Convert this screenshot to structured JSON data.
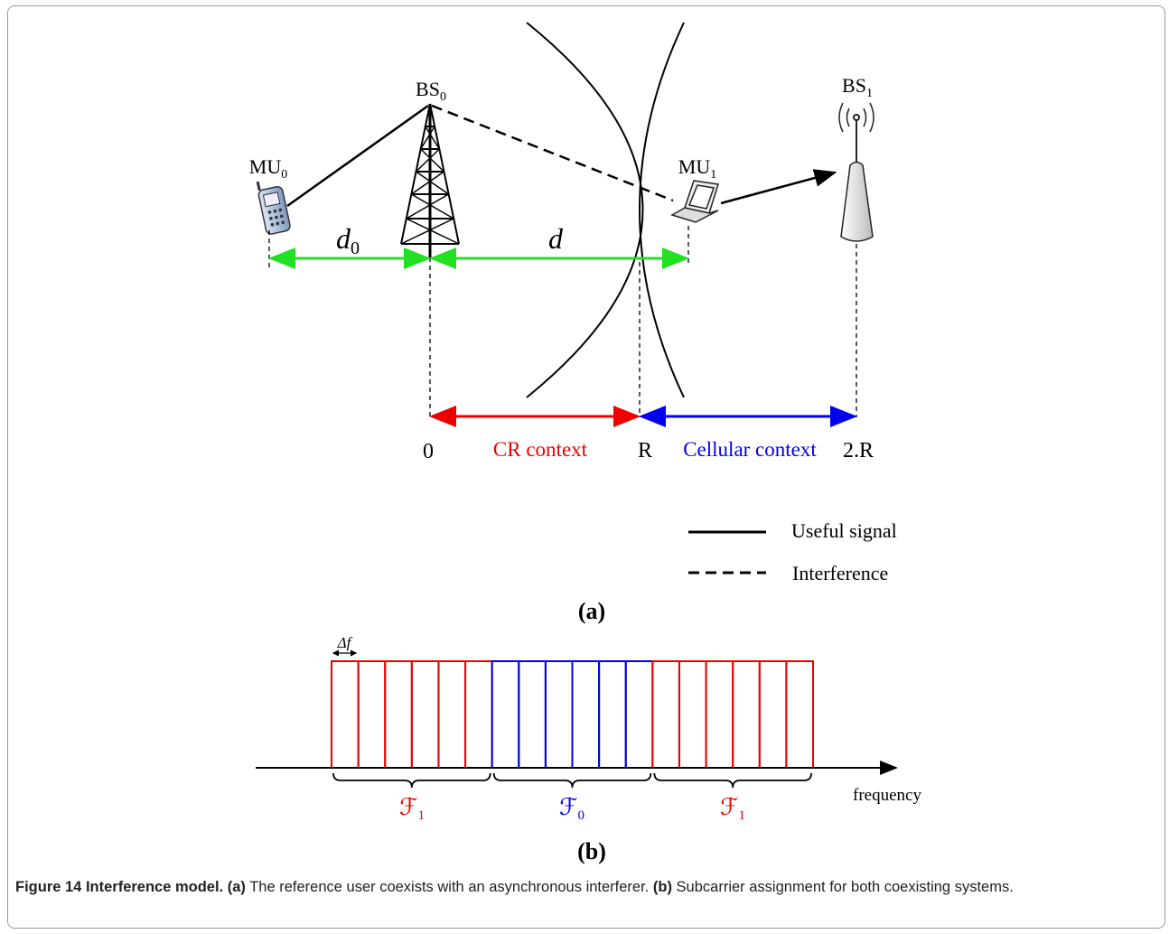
{
  "figure": {
    "panel_a": {
      "nodes": [
        {
          "label": "BS",
          "sub": "0"
        },
        {
          "label": "MU",
          "sub": "0"
        },
        {
          "label": "MU",
          "sub": "1"
        },
        {
          "label": "BS",
          "sub": "1"
        }
      ],
      "distances": [
        {
          "label": "d",
          "sub": "0"
        },
        {
          "label": "d"
        }
      ],
      "positions": [
        "0",
        "R",
        "2.R"
      ],
      "contexts": [
        "CR context",
        "Cellular context"
      ],
      "legend": [
        "Useful signal",
        "Interference"
      ],
      "panel_label": "(a)"
    },
    "panel_b": {
      "spacing": "Δf",
      "groups": [
        {
          "label": "ℱ",
          "sub": "1"
        },
        {
          "label": "ℱ",
          "sub": "0"
        },
        {
          "label": "ℱ",
          "sub": "1"
        }
      ],
      "axis": "frequency",
      "panel_label": "(b)"
    },
    "caption": {
      "title": "Figure 14 Interference model.",
      "a_label": "(a)",
      "a_text": "The reference user coexists with an asynchronous interferer.",
      "b_label": "(b)",
      "b_text": "Subcarrier assignment for both coexisting systems."
    }
  }
}
